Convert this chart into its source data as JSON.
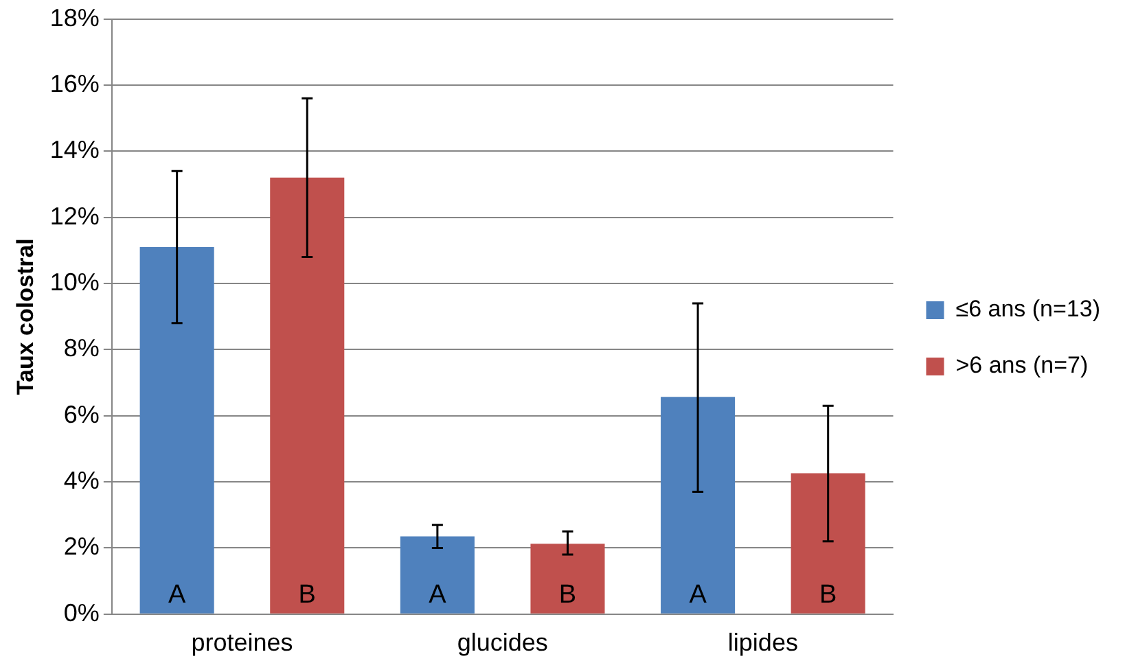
{
  "chart_data": {
    "type": "bar",
    "ylabel": "Taux colostral",
    "categories": [
      "proteines",
      "glucides",
      "lipides"
    ],
    "series": [
      {
        "name": "≤6 ans (n=13)",
        "color": "#4f81bd",
        "values": [
          11.1,
          2.35,
          6.57
        ],
        "errors": [
          [
            8.8,
            13.4
          ],
          [
            2.0,
            2.7
          ],
          [
            3.7,
            9.4
          ]
        ],
        "value_labels": [
          "A",
          "A",
          "A"
        ]
      },
      {
        "name": ">6 ans (n=7)",
        "color": "#c0504d",
        "values": [
          13.2,
          2.13,
          4.26
        ],
        "errors": [
          [
            10.8,
            15.6
          ],
          [
            1.8,
            2.5
          ],
          [
            2.2,
            6.3
          ]
        ],
        "value_labels": [
          "B",
          "B",
          "B"
        ]
      }
    ],
    "ylim": [
      0,
      18
    ],
    "yticks": [
      {
        "value": 0,
        "label": "0%"
      },
      {
        "value": 2,
        "label": "2%"
      },
      {
        "value": 4,
        "label": "4%"
      },
      {
        "value": 6,
        "label": "6%"
      },
      {
        "value": 8,
        "label": "8%"
      },
      {
        "value": 10,
        "label": "10%"
      },
      {
        "value": 12,
        "label": "12%"
      },
      {
        "value": 14,
        "label": "14%"
      },
      {
        "value": 16,
        "label": "16%"
      },
      {
        "value": 18,
        "label": "18%"
      }
    ],
    "grid": "y",
    "legend": "right"
  }
}
